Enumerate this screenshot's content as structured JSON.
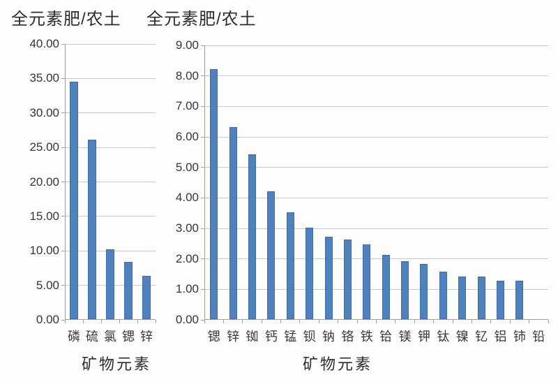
{
  "page": {
    "background_color": "#fdfdfd",
    "text_color": "#2d2d2d",
    "gridline_color": "#c9c9c9",
    "axis_color": "#a0a0a0"
  },
  "chart_data": [
    {
      "type": "bar",
      "title": "全元素肥/农土",
      "xlabel": "矿物元素",
      "ylabel": "",
      "categories": [
        "磷",
        "硫",
        "氯",
        "锶",
        "锌"
      ],
      "values": [
        34.4,
        26.0,
        10.1,
        8.3,
        6.3
      ],
      "ylim": [
        0,
        40
      ],
      "ytick_step": 5,
      "yticks": [
        "0.00",
        "5.00",
        "10.00",
        "15.00",
        "20.00",
        "25.00",
        "30.00",
        "35.00",
        "40.00"
      ],
      "grid": true,
      "legend": false,
      "bar_color": "#4f81bd",
      "bar_border_color": "#3e6ca6"
    },
    {
      "type": "bar",
      "title": "全元素肥/农土",
      "xlabel": "矿物元素",
      "ylabel": "",
      "categories": [
        "锶",
        "锌",
        "铷",
        "钙",
        "锰",
        "钡",
        "钠",
        "铬",
        "铁",
        "铪",
        "镁",
        "钾",
        "钛",
        "镍",
        "钇",
        "铝",
        "铈",
        "铅"
      ],
      "values": [
        8.2,
        6.3,
        5.4,
        4.2,
        3.5,
        3.0,
        2.7,
        2.6,
        2.45,
        2.1,
        1.9,
        1.8,
        1.55,
        1.4,
        1.4,
        1.25,
        1.25,
        0
      ],
      "ylim": [
        0,
        9
      ],
      "ytick_step": 1,
      "yticks": [
        "0.00",
        "1.00",
        "2.00",
        "3.00",
        "4.00",
        "5.00",
        "6.00",
        "7.00",
        "8.00",
        "9.00"
      ],
      "grid": true,
      "legend": false,
      "bar_color": "#4f81bd",
      "bar_border_color": "#3e6ca6"
    }
  ]
}
